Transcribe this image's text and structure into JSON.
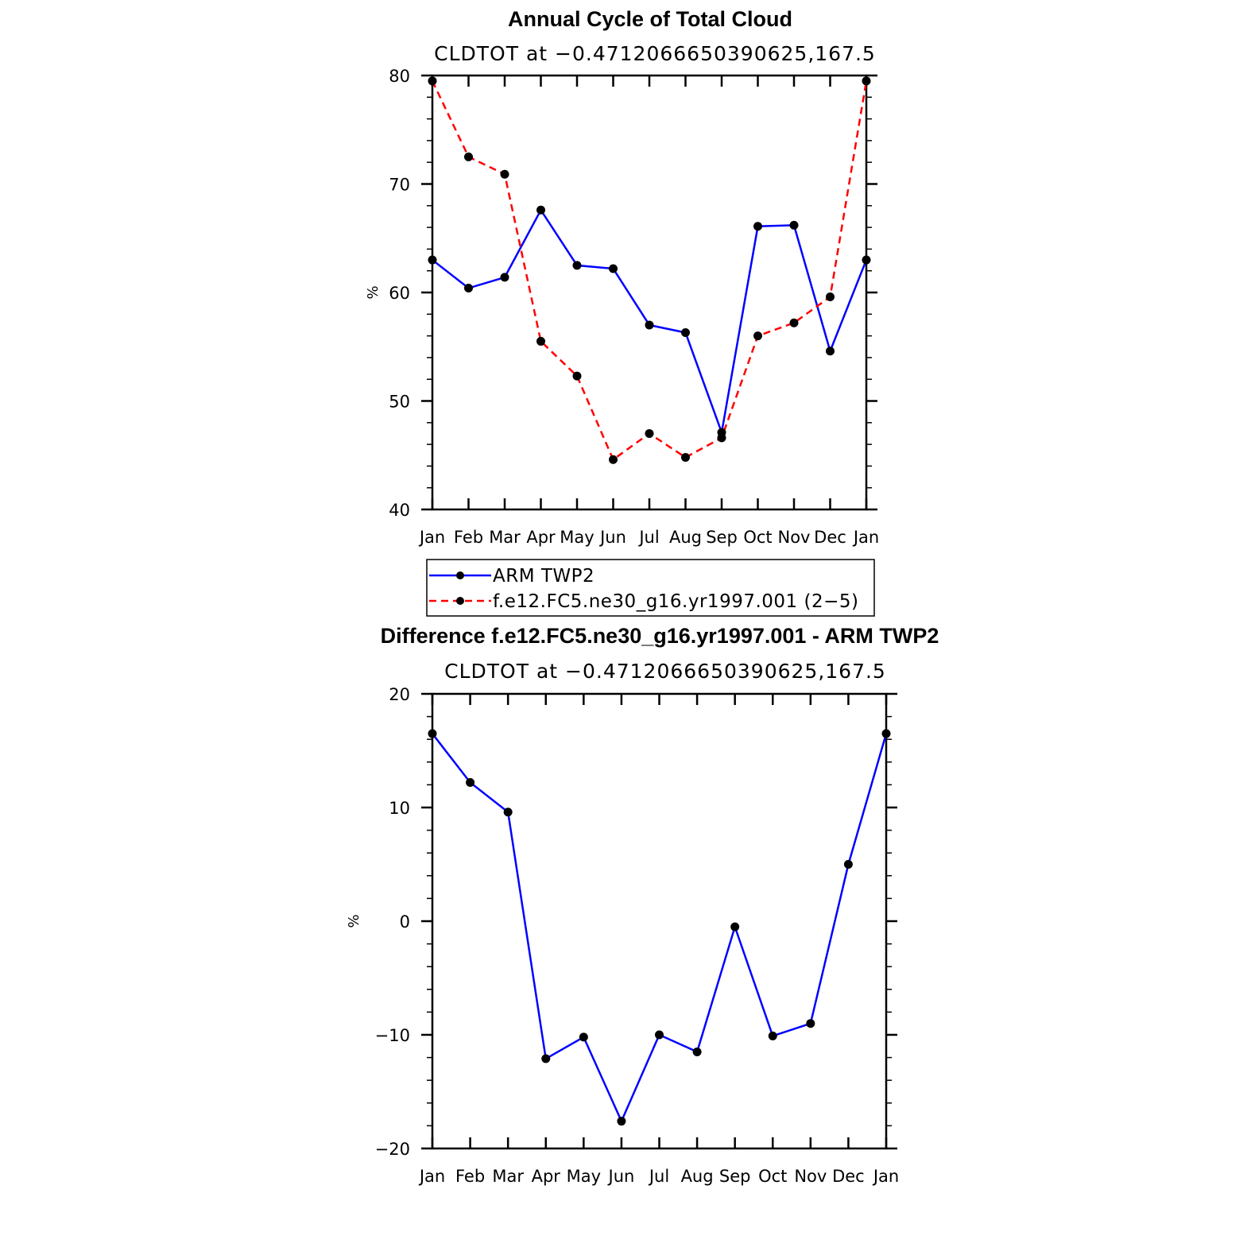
{
  "chart_data": [
    {
      "type": "line",
      "title": "Annual Cycle of Total Cloud",
      "subtitle": "CLDTOT at −0.4712066650390625,167.5",
      "ylabel": "%",
      "categories": [
        "Jan",
        "Feb",
        "Mar",
        "Apr",
        "May",
        "Jun",
        "Jul",
        "Aug",
        "Sep",
        "Oct",
        "Nov",
        "Dec",
        "Jan"
      ],
      "ylim": [
        40,
        80
      ],
      "yticks": [
        40,
        50,
        60,
        70,
        80
      ],
      "ytick_labels": [
        "40",
        "50",
        "60",
        "70",
        "80"
      ],
      "series": [
        {
          "name": "ARM TWP2",
          "color": "#0000ff",
          "dashed": false,
          "values": [
            63.0,
            60.4,
            61.4,
            67.6,
            62.5,
            62.2,
            57.0,
            56.3,
            47.1,
            66.1,
            66.2,
            54.6,
            63.0
          ]
        },
        {
          "name": "f.e12.FC5.ne30_g16.yr1997.001 (2−5)",
          "color": "#ff0000",
          "dashed": true,
          "values": [
            79.5,
            72.5,
            70.9,
            55.5,
            52.3,
            44.6,
            47.0,
            44.8,
            46.6,
            56.0,
            57.2,
            59.6,
            79.5
          ]
        }
      ],
      "legend": {
        "position": "below",
        "entries": [
          "ARM TWP2",
          "f.e12.FC5.ne30_g16.yr1997.001 (2−5)"
        ]
      },
      "marker_color": "#000000"
    },
    {
      "type": "line",
      "title": "Difference f.e12.FC5.ne30_g16.yr1997.001 - ARM TWP2",
      "subtitle": "CLDTOT at −0.4712066650390625,167.5",
      "ylabel": "%",
      "categories": [
        "Jan",
        "Feb",
        "Mar",
        "Apr",
        "May",
        "Jun",
        "Jul",
        "Aug",
        "Sep",
        "Oct",
        "Nov",
        "Dec",
        "Jan"
      ],
      "ylim": [
        -20,
        20
      ],
      "yticks": [
        -20,
        -10,
        0,
        10,
        20
      ],
      "ytick_labels": [
        "−20",
        "−10",
        "0",
        "10",
        "20"
      ],
      "series": [
        {
          "color": "#0000ff",
          "dashed": false,
          "values": [
            16.5,
            12.2,
            9.6,
            -12.1,
            -10.2,
            -17.6,
            -10.0,
            -11.5,
            -0.5,
            -10.1,
            -9.0,
            5.0,
            16.5
          ]
        }
      ],
      "marker_color": "#000000"
    }
  ]
}
